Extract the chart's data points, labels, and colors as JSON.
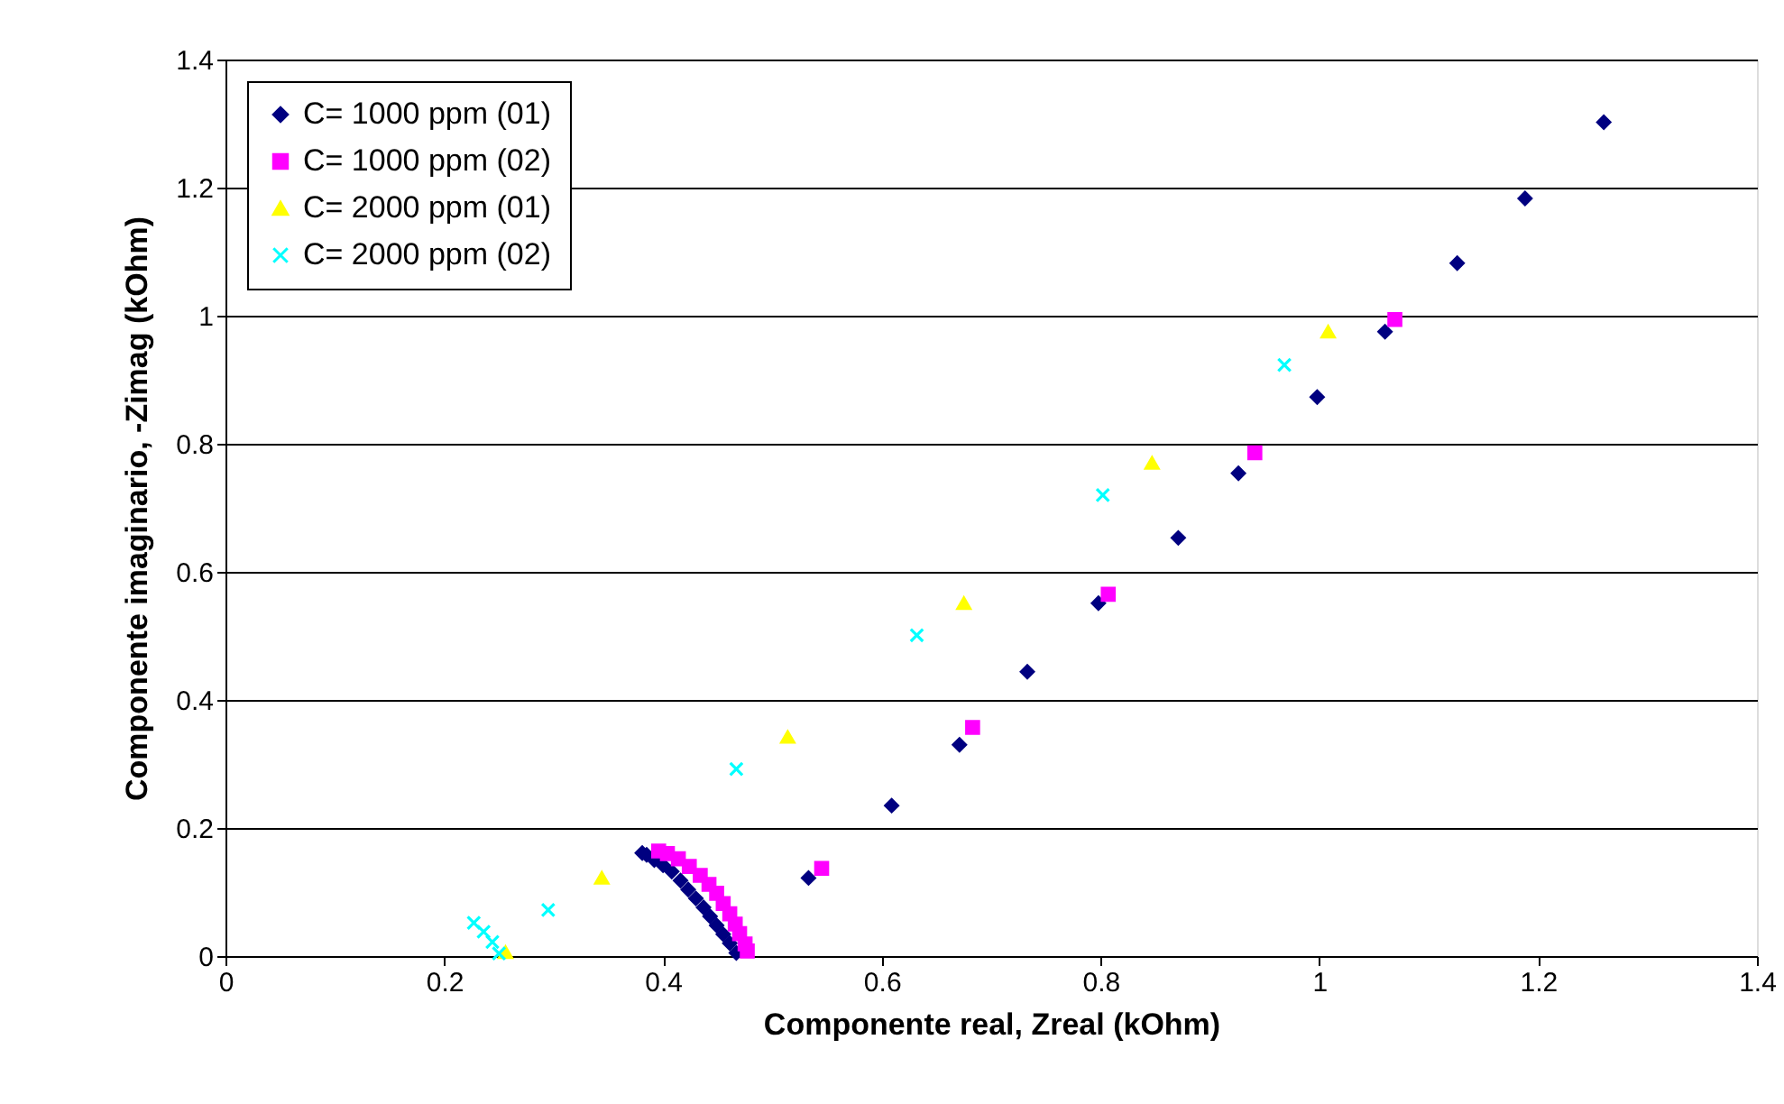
{
  "chart_data": {
    "type": "scatter",
    "xlabel": "Componente  real, Zreal (kOhm)",
    "ylabel": "Componente imaginario, -Zimag (kOhm)",
    "xlim": [
      0,
      1.4
    ],
    "xticks": [
      0,
      0.2,
      0.4,
      0.6,
      0.8,
      1,
      1.2,
      1.4
    ],
    "ylim": [
      0,
      1.4
    ],
    "yticks": [
      0,
      0.2,
      0.4,
      0.6,
      0.8,
      1,
      1.2,
      1.4
    ],
    "grid": "y",
    "legend": "top left",
    "series": [
      {
        "name": "C= 1000 ppm (01)",
        "color": "#000080",
        "marker": "diamond",
        "x": [
          0.381,
          0.385,
          0.392,
          0.4,
          0.408,
          0.416,
          0.423,
          0.43,
          0.437,
          0.443,
          0.449,
          0.455,
          0.461,
          0.467,
          0.533,
          0.609,
          0.671,
          0.733,
          0.798,
          0.871,
          0.926,
          0.998,
          1.06,
          1.126,
          1.188,
          1.26
        ],
        "values": [
          0.161,
          0.158,
          0.15,
          0.142,
          0.132,
          0.118,
          0.104,
          0.09,
          0.076,
          0.062,
          0.048,
          0.034,
          0.02,
          0.005,
          0.122,
          0.235,
          0.33,
          0.444,
          0.551,
          0.653,
          0.754,
          0.873,
          0.975,
          1.082,
          1.183,
          1.302
        ]
      },
      {
        "name": "C= 1000 ppm (02)",
        "color": "#ff00ff",
        "marker": "square",
        "x": [
          0.396,
          0.404,
          0.414,
          0.424,
          0.434,
          0.442,
          0.449,
          0.455,
          0.461,
          0.466,
          0.47,
          0.475,
          0.477,
          0.545,
          0.683,
          0.807,
          0.941,
          1.069
        ],
        "values": [
          0.164,
          0.16,
          0.152,
          0.14,
          0.126,
          0.112,
          0.098,
          0.082,
          0.066,
          0.05,
          0.035,
          0.019,
          0.008,
          0.137,
          0.357,
          0.565,
          0.786,
          0.994
        ]
      },
      {
        "name": "C= 2000 ppm (01)",
        "color": "#ffff00",
        "marker": "triangle",
        "x": [
          0.256,
          0.344,
          0.514,
          0.675,
          0.847,
          1.008
        ],
        "values": [
          0.006,
          0.122,
          0.342,
          0.551,
          0.77,
          0.975
        ]
      },
      {
        "name": "C= 2000 ppm (02)",
        "color": "#00ffff",
        "marker": "cross",
        "x": [
          0.227,
          0.236,
          0.244,
          0.25,
          0.295,
          0.467,
          0.632,
          0.802,
          0.968
        ],
        "values": [
          0.052,
          0.038,
          0.022,
          0.004,
          0.072,
          0.292,
          0.501,
          0.72,
          0.923
        ]
      }
    ]
  }
}
